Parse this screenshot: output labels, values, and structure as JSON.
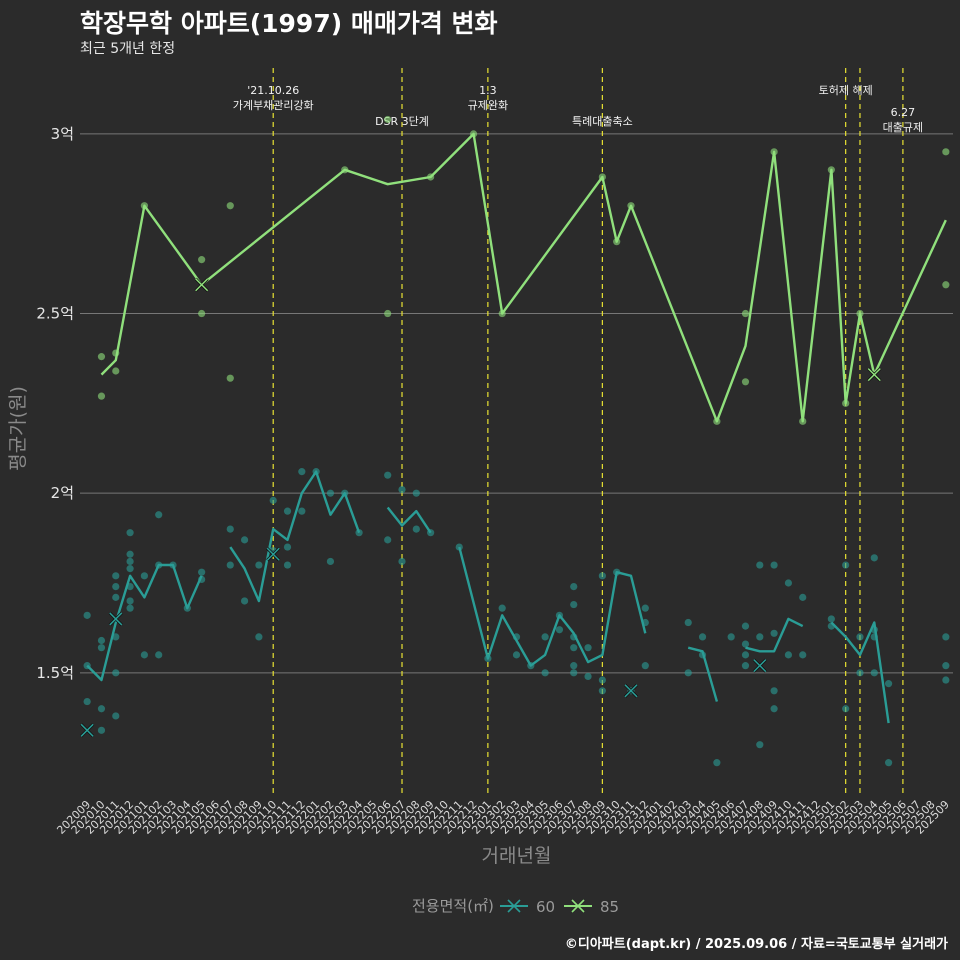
{
  "title": "학장무학 아파트(1997) 매매가격 변화",
  "subtitle": "최근 5개년 한정",
  "caption": "©디아파트(dapt.kr) / 2025.09.06 / 자료=국토교통부 실거래가",
  "colors": {
    "background": "#2b2b2b",
    "series60": "#2a9d96",
    "series85": "#90e07c",
    "event": "#e8e233",
    "grid": "#777777"
  },
  "chart_data": {
    "type": "line",
    "xlabel": "거래년월",
    "ylabel": "평균가(원)",
    "x": [
      "202009",
      "202010",
      "202011",
      "202012",
      "202101",
      "202102",
      "202103",
      "202104",
      "202105",
      "202106",
      "202107",
      "202108",
      "202109",
      "202110",
      "202111",
      "202112",
      "202201",
      "202202",
      "202203",
      "202204",
      "202205",
      "202206",
      "202207",
      "202208",
      "202209",
      "202210",
      "202211",
      "202212",
      "202301",
      "202302",
      "202303",
      "202304",
      "202305",
      "202306",
      "202307",
      "202308",
      "202309",
      "202310",
      "202311",
      "202312",
      "202401",
      "202402",
      "202403",
      "202404",
      "202405",
      "202406",
      "202407",
      "202408",
      "202409",
      "202410",
      "202411",
      "202412",
      "202501",
      "202502",
      "202503",
      "202504",
      "202505",
      "202506",
      "202507",
      "202508",
      "202509"
    ],
    "y_ticks": [
      {
        "value": 1.5,
        "label": "1.5억"
      },
      {
        "value": 2.0,
        "label": "2억"
      },
      {
        "value": 2.5,
        "label": "2.5억"
      },
      {
        "value": 3.0,
        "label": "3억"
      }
    ],
    "ylim": [
      1.16,
      3.2
    ],
    "legend": {
      "title": "전용면적(㎡)",
      "position": "bottom"
    },
    "series": [
      {
        "name": "60",
        "color": "#2a9d96",
        "line": [
          [
            0,
            1.52
          ],
          [
            1,
            1.48
          ],
          [
            2,
            1.64
          ],
          [
            3,
            1.77
          ],
          [
            4,
            1.71
          ],
          [
            5,
            1.8
          ],
          [
            6,
            1.8
          ],
          [
            7,
            1.68
          ],
          [
            8,
            1.77
          ],
          null,
          [
            10,
            1.85
          ],
          [
            11,
            1.79
          ],
          [
            12,
            1.7
          ],
          [
            13,
            1.9
          ],
          [
            14,
            1.87
          ],
          [
            15,
            2.0
          ],
          [
            16,
            2.06
          ],
          [
            17,
            1.94
          ],
          [
            18,
            2.0
          ],
          [
            19,
            1.89
          ],
          null,
          [
            21,
            1.96
          ],
          [
            22,
            1.91
          ],
          [
            23,
            1.95
          ],
          [
            24,
            1.89
          ],
          null,
          [
            26,
            1.85
          ],
          [
            28,
            1.54
          ],
          [
            29,
            1.66
          ],
          [
            30,
            1.59
          ],
          [
            31,
            1.52
          ],
          [
            32,
            1.55
          ],
          [
            33,
            1.66
          ],
          [
            34,
            1.61
          ],
          [
            35,
            1.53
          ],
          [
            36,
            1.55
          ],
          [
            37,
            1.78
          ],
          [
            38,
            1.77
          ],
          [
            39,
            1.61
          ],
          null,
          [
            42,
            1.57
          ],
          [
            43,
            1.56
          ],
          [
            44,
            1.42
          ],
          null,
          [
            46,
            1.57
          ],
          [
            47,
            1.56
          ],
          [
            48,
            1.56
          ],
          [
            49,
            1.65
          ],
          [
            50,
            1.63
          ],
          null,
          [
            52,
            1.64
          ],
          [
            53,
            1.6
          ],
          [
            54,
            1.55
          ],
          [
            55,
            1.64
          ],
          [
            56,
            1.36
          ]
        ],
        "points": [
          [
            0,
            1.66
          ],
          [
            0,
            1.52
          ],
          [
            0,
            1.42
          ],
          [
            1,
            1.59
          ],
          [
            1,
            1.57
          ],
          [
            1,
            1.4
          ],
          [
            1,
            1.34
          ],
          [
            2,
            1.77
          ],
          [
            2,
            1.74
          ],
          [
            2,
            1.71
          ],
          [
            2,
            1.6
          ],
          [
            2,
            1.5
          ],
          [
            2,
            1.38
          ],
          [
            3,
            1.89
          ],
          [
            3,
            1.83
          ],
          [
            3,
            1.81
          ],
          [
            3,
            1.79
          ],
          [
            3,
            1.74
          ],
          [
            3,
            1.7
          ],
          [
            3,
            1.68
          ],
          [
            4,
            1.77
          ],
          [
            4,
            1.55
          ],
          [
            5,
            1.94
          ],
          [
            5,
            1.8
          ],
          [
            5,
            1.55
          ],
          [
            6,
            1.8
          ],
          [
            7,
            1.68
          ],
          [
            8,
            1.78
          ],
          [
            8,
            1.76
          ],
          [
            10,
            1.9
          ],
          [
            10,
            1.8
          ],
          [
            11,
            1.87
          ],
          [
            11,
            1.7
          ],
          [
            12,
            1.8
          ],
          [
            12,
            1.6
          ],
          [
            13,
            1.98
          ],
          [
            13,
            1.84
          ],
          [
            14,
            1.95
          ],
          [
            14,
            1.85
          ],
          [
            14,
            1.8
          ],
          [
            15,
            2.06
          ],
          [
            15,
            1.95
          ],
          [
            16,
            2.06
          ],
          [
            17,
            2.0
          ],
          [
            17,
            1.81
          ],
          [
            18,
            2.0
          ],
          [
            19,
            1.89
          ],
          [
            21,
            2.05
          ],
          [
            21,
            1.87
          ],
          [
            22,
            2.01
          ],
          [
            22,
            1.81
          ],
          [
            23,
            2.0
          ],
          [
            23,
            1.9
          ],
          [
            24,
            1.89
          ],
          [
            26,
            1.85
          ],
          [
            28,
            1.54
          ],
          [
            29,
            1.68
          ],
          [
            30,
            1.6
          ],
          [
            30,
            1.55
          ],
          [
            31,
            1.52
          ],
          [
            32,
            1.6
          ],
          [
            32,
            1.5
          ],
          [
            33,
            1.66
          ],
          [
            33,
            1.62
          ],
          [
            34,
            1.74
          ],
          [
            34,
            1.69
          ],
          [
            34,
            1.6
          ],
          [
            34,
            1.57
          ],
          [
            34,
            1.52
          ],
          [
            34,
            1.5
          ],
          [
            35,
            1.57
          ],
          [
            35,
            1.49
          ],
          [
            36,
            1.77
          ],
          [
            36,
            1.48
          ],
          [
            36,
            1.45
          ],
          [
            37,
            1.78
          ],
          [
            38,
            1.45
          ],
          [
            39,
            1.68
          ],
          [
            39,
            1.64
          ],
          [
            39,
            1.52
          ],
          [
            42,
            1.64
          ],
          [
            42,
            1.5
          ],
          [
            43,
            1.6
          ],
          [
            43,
            1.55
          ],
          [
            44,
            1.25
          ],
          [
            45,
            1.6
          ],
          [
            46,
            1.63
          ],
          [
            46,
            1.58
          ],
          [
            46,
            1.55
          ],
          [
            46,
            1.52
          ],
          [
            47,
            1.8
          ],
          [
            47,
            1.6
          ],
          [
            47,
            1.3
          ],
          [
            48,
            1.8
          ],
          [
            48,
            1.61
          ],
          [
            48,
            1.45
          ],
          [
            48,
            1.4
          ],
          [
            49,
            1.75
          ],
          [
            49,
            1.55
          ],
          [
            50,
            1.71
          ],
          [
            50,
            1.55
          ],
          [
            52,
            1.65
          ],
          [
            52,
            1.63
          ],
          [
            53,
            1.8
          ],
          [
            53,
            1.4
          ],
          [
            54,
            1.6
          ],
          [
            54,
            1.5
          ],
          [
            55,
            1.82
          ],
          [
            55,
            1.62
          ],
          [
            55,
            1.6
          ],
          [
            55,
            1.5
          ],
          [
            56,
            1.47
          ],
          [
            56,
            1.25
          ],
          [
            60,
            1.6
          ],
          [
            60,
            1.52
          ],
          [
            60,
            1.48
          ]
        ],
        "markers": [
          [
            0,
            1.34
          ],
          [
            2,
            1.65
          ],
          [
            13,
            1.83
          ],
          [
            38,
            1.45
          ],
          [
            47,
            1.52
          ]
        ]
      },
      {
        "name": "85",
        "color": "#90e07c",
        "line": [
          [
            1,
            2.33
          ],
          [
            2,
            2.37
          ],
          [
            4,
            2.8
          ],
          [
            8,
            2.58
          ],
          [
            18,
            2.9
          ],
          [
            21,
            2.86
          ],
          [
            24,
            2.88
          ],
          [
            27,
            3.0
          ],
          [
            29,
            2.5
          ],
          [
            36,
            2.88
          ],
          [
            37,
            2.7
          ],
          [
            38,
            2.8
          ],
          [
            44,
            2.2
          ],
          [
            46,
            2.41
          ],
          [
            48,
            2.95
          ],
          [
            50,
            2.2
          ],
          [
            52,
            2.9
          ],
          [
            53,
            2.25
          ],
          [
            54,
            2.5
          ],
          [
            55,
            2.33
          ],
          [
            60,
            2.76
          ]
        ],
        "points": [
          [
            1,
            2.38
          ],
          [
            1,
            2.27
          ],
          [
            2,
            2.39
          ],
          [
            2,
            2.34
          ],
          [
            4,
            2.8
          ],
          [
            8,
            2.65
          ],
          [
            8,
            2.5
          ],
          [
            10,
            2.8
          ],
          [
            10,
            2.32
          ],
          [
            18,
            2.9
          ],
          [
            21,
            3.04
          ],
          [
            21,
            2.5
          ],
          [
            24,
            2.88
          ],
          [
            27,
            3.0
          ],
          [
            29,
            2.5
          ],
          [
            36,
            2.88
          ],
          [
            37,
            2.7
          ],
          [
            38,
            2.8
          ],
          [
            44,
            2.2
          ],
          [
            46,
            2.5
          ],
          [
            46,
            2.31
          ],
          [
            48,
            2.95
          ],
          [
            50,
            2.2
          ],
          [
            52,
            2.9
          ],
          [
            53,
            2.25
          ],
          [
            54,
            2.5
          ],
          [
            60,
            2.95
          ],
          [
            60,
            2.58
          ]
        ],
        "markers": [
          [
            8,
            2.58
          ],
          [
            55,
            2.33
          ]
        ]
      }
    ],
    "events": [
      {
        "index": 13,
        "lines": [
          "'21.10.26",
          "가계부채관리강화"
        ],
        "row": 1
      },
      {
        "index": 22,
        "lines": [
          "DSR 3단계"
        ],
        "row": 2
      },
      {
        "index": 28,
        "lines": [
          "1.3",
          "규제완화"
        ],
        "row": 1
      },
      {
        "index": 36,
        "lines": [
          "특례대출축소"
        ],
        "row": 2
      },
      {
        "index": 53,
        "lines": [
          "토허제 해제"
        ],
        "row": 1
      },
      {
        "index": 54,
        "lines": [],
        "row": 1
      },
      {
        "index": 57,
        "lines": [
          "6.27",
          "대출규제"
        ],
        "row": 3
      }
    ]
  }
}
